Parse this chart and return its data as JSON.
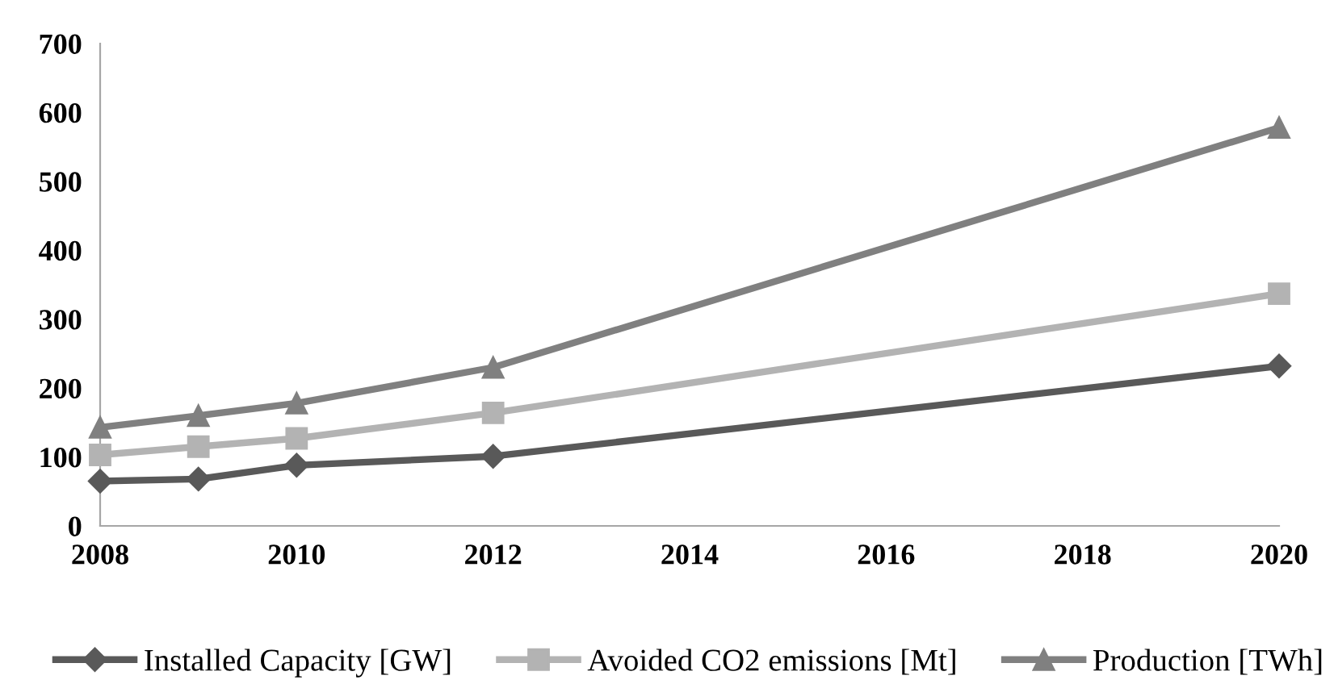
{
  "chart_data": {
    "type": "line",
    "x": [
      2008,
      2009,
      2010,
      2012,
      2020
    ],
    "series": [
      {
        "name": "Installed Capacity [GW]",
        "color": "#595959",
        "marker": "diamond",
        "values": [
          65,
          68,
          88,
          101,
          232
        ]
      },
      {
        "name": "Avoided CO2 emissions [Mt]",
        "color": "#b3b3b3",
        "marker": "square",
        "values": [
          103,
          115,
          127,
          164,
          337
        ]
      },
      {
        "name": "Production [TWh]",
        "color": "#808080",
        "marker": "triangle",
        "values": [
          143,
          160,
          178,
          230,
          578
        ]
      }
    ],
    "xlim": [
      2008,
      2020
    ],
    "xticks": [
      2008,
      2010,
      2012,
      2014,
      2016,
      2018,
      2020
    ],
    "ylim": [
      0,
      700
    ],
    "yticks": [
      0,
      100,
      200,
      300,
      400,
      500,
      600,
      700
    ],
    "grid": false,
    "legend": "bottom"
  }
}
